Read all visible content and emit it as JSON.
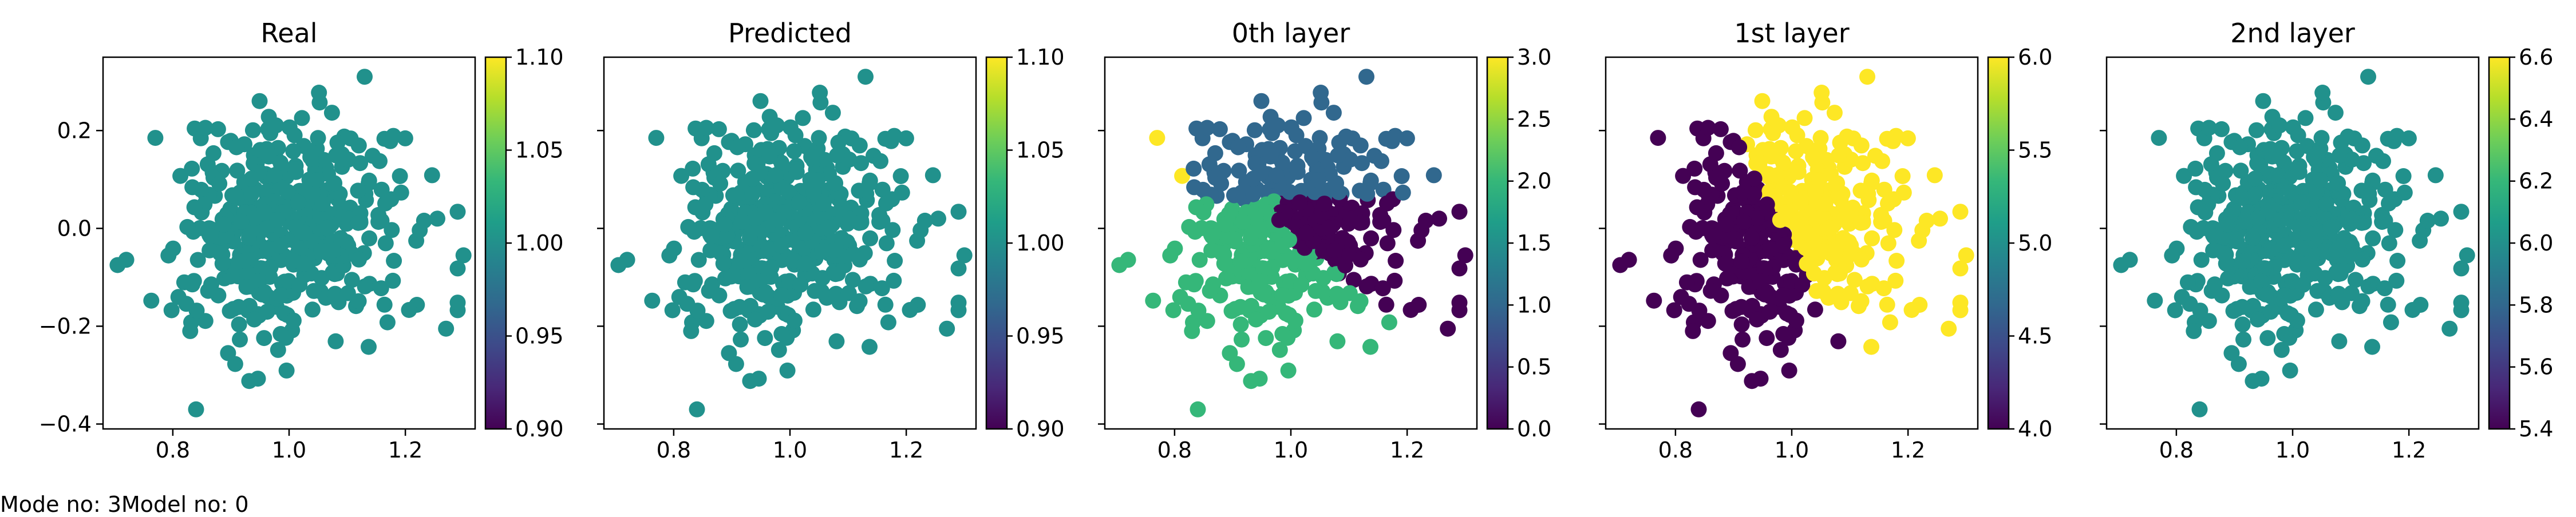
{
  "footer": {
    "text": "Mode no: 3Model no: 0"
  },
  "chart_data": [
    {
      "type": "scatter",
      "title": "Real",
      "xlim": [
        0.68,
        1.32
      ],
      "ylim": [
        -0.41,
        0.35
      ],
      "xticks": [
        0.8,
        1.0,
        1.2
      ],
      "xtick_labels": [
        "0.8",
        "1.0",
        "1.2"
      ],
      "yticks": [
        -0.4,
        -0.2,
        0.0,
        0.2
      ],
      "ytick_labels": [
        "−0.4",
        "−0.2",
        "0.0",
        "0.2"
      ],
      "color_mode": "constant",
      "constant_color": "#21918c",
      "colorbar": {
        "range": [
          0.9,
          1.1
        ],
        "ticks": [
          0.9,
          0.95,
          1.0,
          1.05,
          1.1
        ],
        "tick_labels": [
          "0.90",
          "0.95",
          "1.00",
          "1.05",
          "1.10"
        ]
      },
      "grid": false,
      "legend": "none"
    },
    {
      "type": "scatter",
      "title": "Predicted",
      "xlim": [
        0.68,
        1.32
      ],
      "ylim": [
        -0.41,
        0.35
      ],
      "xticks": [
        0.8,
        1.0,
        1.2
      ],
      "xtick_labels": [
        "0.8",
        "1.0",
        "1.2"
      ],
      "yticks": [
        -0.4,
        -0.2,
        0.0,
        0.2
      ],
      "ytick_labels": [
        "",
        "",
        "",
        ""
      ],
      "color_mode": "constant",
      "constant_color": "#21918c",
      "colorbar": {
        "range": [
          0.9,
          1.1
        ],
        "ticks": [
          0.9,
          0.95,
          1.0,
          1.05,
          1.1
        ],
        "tick_labels": [
          "0.90",
          "0.95",
          "1.00",
          "1.05",
          "1.10"
        ]
      },
      "grid": false,
      "legend": "none"
    },
    {
      "type": "scatter",
      "title": "0th layer",
      "xlim": [
        0.68,
        1.32
      ],
      "ylim": [
        -0.41,
        0.35
      ],
      "xticks": [
        0.8,
        1.0,
        1.2
      ],
      "xtick_labels": [
        "0.8",
        "1.0",
        "1.2"
      ],
      "yticks": [
        -0.4,
        -0.2,
        0.0,
        0.2
      ],
      "ytick_labels": [
        "",
        "",
        "",
        ""
      ],
      "color_mode": "four_region",
      "class_colors": [
        "#440154",
        "#31688e",
        "#35b779",
        "#fde725"
      ],
      "colorbar": {
        "range": [
          0.0,
          3.0
        ],
        "ticks": [
          0,
          0.5,
          1,
          1.5,
          2,
          2.5,
          3
        ],
        "tick_labels": [
          "0.0",
          "0.5",
          "1.0",
          "1.5",
          "2.0",
          "2.5",
          "3.0"
        ]
      },
      "grid": false,
      "legend": "none"
    },
    {
      "type": "scatter",
      "title": "1st layer",
      "xlim": [
        0.68,
        1.32
      ],
      "ylim": [
        -0.41,
        0.35
      ],
      "xticks": [
        0.8,
        1.0,
        1.2
      ],
      "xtick_labels": [
        "0.8",
        "1.0",
        "1.2"
      ],
      "yticks": [
        -0.4,
        -0.2,
        0.0,
        0.2
      ],
      "ytick_labels": [
        "",
        "",
        "",
        ""
      ],
      "color_mode": "two_region",
      "class_colors": [
        "#440154",
        "#fde725"
      ],
      "colorbar": {
        "range": [
          4.0,
          6.0
        ],
        "ticks": [
          4,
          4.5,
          5,
          5.5,
          6
        ],
        "tick_labels": [
          "4.0",
          "4.5",
          "5.0",
          "5.5",
          "6.0"
        ]
      },
      "grid": false,
      "legend": "none"
    },
    {
      "type": "scatter",
      "title": "2nd layer",
      "xlim": [
        0.68,
        1.32
      ],
      "ylim": [
        -0.41,
        0.35
      ],
      "xticks": [
        0.8,
        1.0,
        1.2
      ],
      "xtick_labels": [
        "0.8",
        "1.0",
        "1.2"
      ],
      "yticks": [
        -0.4,
        -0.2,
        0.0,
        0.2
      ],
      "ytick_labels": [
        "",
        "",
        "",
        ""
      ],
      "color_mode": "constant",
      "constant_color": "#21918c",
      "colorbar": {
        "range": [
          5.4,
          6.6
        ],
        "ticks": [
          5.4,
          5.6,
          5.8,
          6.0,
          6.2,
          6.4,
          6.6
        ],
        "tick_labels": [
          "5.4",
          "5.6",
          "5.8",
          "6.0",
          "6.2",
          "6.4",
          "6.6"
        ]
      },
      "grid": false,
      "legend": "none"
    }
  ],
  "points": {
    "count": 420,
    "x_center": 1.0,
    "y_center": 0.0,
    "x_spread": 0.095,
    "y_spread": 0.11,
    "seed": 7,
    "outliers": [
      [
        0.705,
        -0.075
      ],
      [
        0.84,
        -0.37
      ],
      [
        1.13,
        0.31
      ],
      [
        1.27,
        -0.205
      ],
      [
        0.895,
        -0.255
      ],
      [
        1.3,
        -0.055
      ],
      [
        0.83,
        -0.21
      ],
      [
        0.77,
        0.185
      ]
    ]
  },
  "viridis_stops": [
    "#440154",
    "#482878",
    "#3e4989",
    "#31688e",
    "#26828e",
    "#1f9e89",
    "#35b779",
    "#6ece58",
    "#b5de2b",
    "#fde725"
  ]
}
